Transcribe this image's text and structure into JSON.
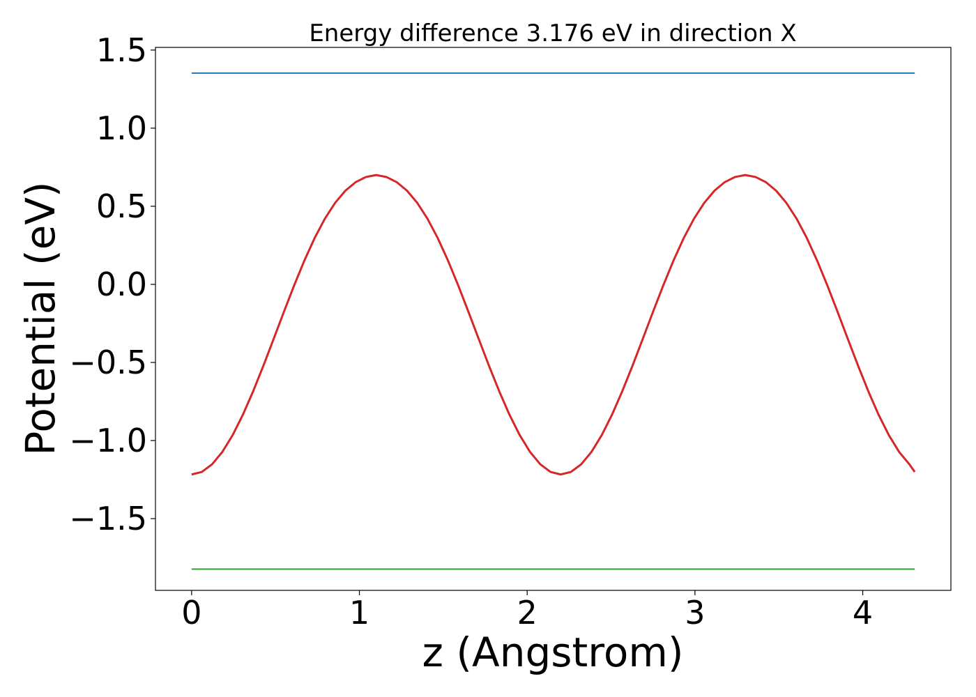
{
  "chart_data": {
    "type": "line",
    "title": "Energy difference 3.176 eV in direction X",
    "xlabel": "z (Angstrom)",
    "ylabel": "Potential (eV)",
    "xlim": [
      -0.2155,
      4.5255
    ],
    "ylim": [
      -1.9592,
      1.5171
    ],
    "x_ticks": [
      {
        "value": 0,
        "label": "0"
      },
      {
        "value": 1,
        "label": "1"
      },
      {
        "value": 2,
        "label": "2"
      },
      {
        "value": 3,
        "label": "3"
      },
      {
        "value": 4,
        "label": "4"
      }
    ],
    "y_ticks": [
      {
        "value": -1.5,
        "label": "−1.5"
      },
      {
        "value": -1.0,
        "label": "−1.0"
      },
      {
        "value": -0.5,
        "label": "−0.5"
      },
      {
        "value": 0.0,
        "label": "0.0"
      },
      {
        "value": 0.5,
        "label": "0.5"
      },
      {
        "value": 1.0,
        "label": "1.0"
      },
      {
        "value": 1.5,
        "label": "1.5"
      }
    ],
    "grid": false,
    "legend": null,
    "series": [
      {
        "kind": "potential-curve",
        "color": "#d62728",
        "x": [
          0.0,
          0.0611,
          0.1222,
          0.1833,
          0.2444,
          0.3056,
          0.3667,
          0.4278,
          0.4889,
          0.55,
          0.6111,
          0.6722,
          0.7333,
          0.7944,
          0.8556,
          0.9167,
          0.9778,
          1.0389,
          1.1,
          1.1611,
          1.2222,
          1.2833,
          1.3444,
          1.4056,
          1.4667,
          1.5278,
          1.5889,
          1.65,
          1.7111,
          1.7722,
          1.8333,
          1.8944,
          1.9556,
          2.0167,
          2.0778,
          2.1389,
          2.2,
          2.2611,
          2.3222,
          2.3833,
          2.4444,
          2.5056,
          2.5667,
          2.6278,
          2.6889,
          2.75,
          2.8111,
          2.8722,
          2.9333,
          2.9944,
          3.0556,
          3.1167,
          3.1778,
          3.2389,
          3.3,
          3.3611,
          3.4222,
          3.4833,
          3.5444,
          3.6056,
          3.6667,
          3.7278,
          3.7889,
          3.85,
          3.9111,
          3.9722,
          4.0333,
          4.0944,
          4.1556,
          4.2167,
          4.2778,
          4.31
        ],
        "y": [
          -1.2173,
          -1.2008,
          -1.1519,
          -1.0725,
          -0.9654,
          -0.8345,
          -0.6845,
          -0.5209,
          -0.3494,
          -0.176,
          -0.0067,
          0.1529,
          0.2967,
          0.4207,
          0.5222,
          0.6001,
          0.6546,
          0.6874,
          0.7,
          0.6874,
          0.6546,
          0.6001,
          0.5222,
          0.4207,
          0.2967,
          0.1529,
          -0.0067,
          -0.176,
          -0.3494,
          -0.5209,
          -0.6845,
          -0.8345,
          -0.9654,
          -1.0725,
          -1.1519,
          -1.2008,
          -1.2173,
          -1.2008,
          -1.1519,
          -1.0725,
          -0.9654,
          -0.8345,
          -0.6845,
          -0.5209,
          -0.3494,
          -0.176,
          -0.0067,
          0.1529,
          0.2967,
          0.4207,
          0.5222,
          0.6001,
          0.6546,
          0.6874,
          0.7,
          0.6874,
          0.6546,
          0.6001,
          0.5222,
          0.4207,
          0.2967,
          0.1529,
          -0.0067,
          -0.176,
          -0.3494,
          -0.5209,
          -0.6845,
          -0.8345,
          -0.9654,
          -1.0725,
          -1.1519,
          -1.2008
        ]
      },
      {
        "kind": "upper-level",
        "color": "#1f77b4",
        "x": [
          0.0,
          4.31
        ],
        "y": [
          1.3527,
          1.3527
        ]
      },
      {
        "kind": "lower-level",
        "color": "#2ca02c",
        "x": [
          0.0,
          4.31
        ],
        "y": [
          -1.8233,
          -1.8233
        ]
      }
    ]
  }
}
